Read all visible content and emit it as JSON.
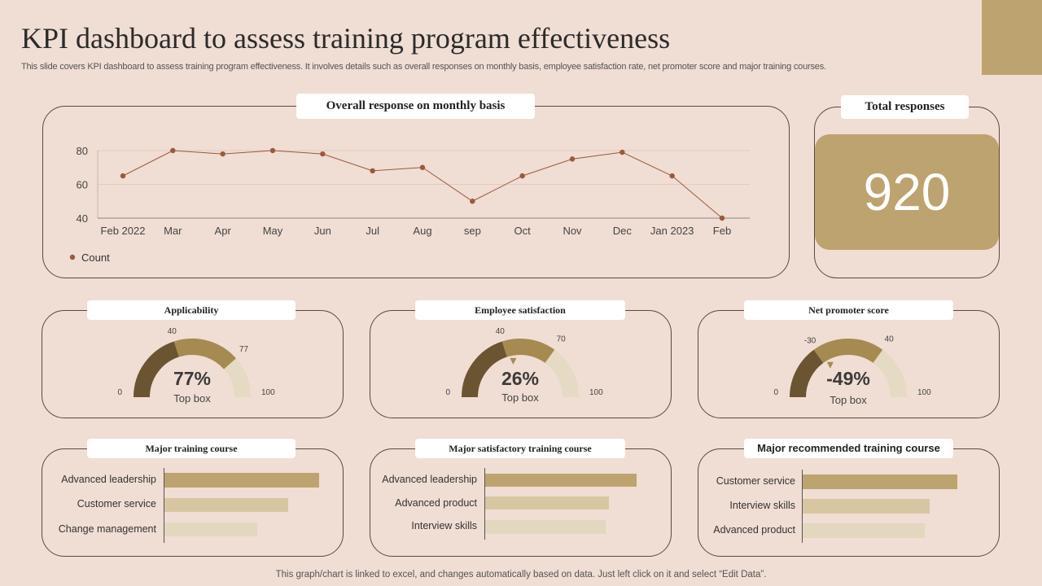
{
  "header": {
    "title": "KPI dashboard to assess training program effectiveness",
    "subtitle": "This slide covers KPI dashboard to assess training program effectiveness. It involves details such as overall responses on monthly basis, employee satisfaction rate, net promoter score and major training courses."
  },
  "colors": {
    "background": "#f0ddd3",
    "accent": "#bda36f",
    "line": "#9a5a3c",
    "dark_gold": "#6b5431",
    "mid_gold": "#a58a52",
    "light_gold": "#e5dac3"
  },
  "monthly": {
    "label": "Overall response on monthly  basis",
    "legend": "Count"
  },
  "total": {
    "label": "Total responses",
    "value": "920"
  },
  "gauges": [
    {
      "label": "Applicability",
      "value": "77%",
      "sub": "Top box",
      "min": "0",
      "t1": "40",
      "t2": "77",
      "max": "100",
      "b1": 40,
      "b2": 77,
      "marker": false
    },
    {
      "label": "Employee  satisfaction",
      "value": "26%",
      "sub": "Top box",
      "min": "0",
      "t1": "40",
      "t2": "70",
      "max": "100",
      "b1": 40,
      "b2": 70,
      "marker": true
    },
    {
      "label": "Net promoter  score",
      "value": "-49%",
      "sub": "Top box",
      "min": "0",
      "t1": "-30",
      "t2": "40",
      "max": "100",
      "b1": 30,
      "b2": 70,
      "marker": true
    }
  ],
  "courses": [
    {
      "label": "Major  training course",
      "items": [
        "Advanced leadership",
        "Customer service",
        "Change management"
      ]
    },
    {
      "label": "Major  satisfactory training course",
      "items": [
        "Advanced leadership",
        "Advanced product",
        "Interview skills"
      ]
    },
    {
      "label": "Major recommended training course",
      "items": [
        "Customer service",
        "Interview skills",
        "Advanced product"
      ]
    }
  ],
  "chart_data": [
    {
      "type": "line",
      "title": "Overall response on monthly  basis",
      "categories": [
        "Feb  2022",
        "Mar",
        "Apr",
        "May",
        "Jun",
        "Jul",
        "Aug",
        "sep",
        "Oct",
        "Nov",
        "Dec",
        "Jan 2023",
        "Feb"
      ],
      "series": [
        {
          "name": "Count",
          "values": [
            65,
            80,
            78,
            80,
            78,
            68,
            70,
            50,
            65,
            75,
            79,
            65,
            40
          ]
        }
      ],
      "yticks": [
        "40",
        "60",
        "80"
      ],
      "ylim": [
        40,
        80
      ],
      "legend": "bottom-left",
      "grid": true
    },
    {
      "type": "bar",
      "title": "Major  training course",
      "categories": [
        "Advanced leadership",
        "Customer service",
        "Change management"
      ],
      "values": [
        95,
        76,
        57
      ],
      "xlim": [
        0,
        100
      ]
    },
    {
      "type": "bar",
      "title": "Major  satisfactory training course",
      "categories": [
        "Advanced leadership",
        "Advanced product",
        "Interview skills"
      ],
      "values": [
        93,
        76,
        74
      ],
      "xlim": [
        0,
        100
      ]
    },
    {
      "type": "bar",
      "title": "Major recommended training course",
      "categories": [
        "Customer service",
        "Interview skills",
        "Advanced product"
      ],
      "values": [
        95,
        78,
        75
      ],
      "xlim": [
        0,
        100
      ]
    }
  ],
  "footer": "This graph/chart is linked to excel,  and changes automatically based on data. Just left click on it and select “Edit Data”."
}
